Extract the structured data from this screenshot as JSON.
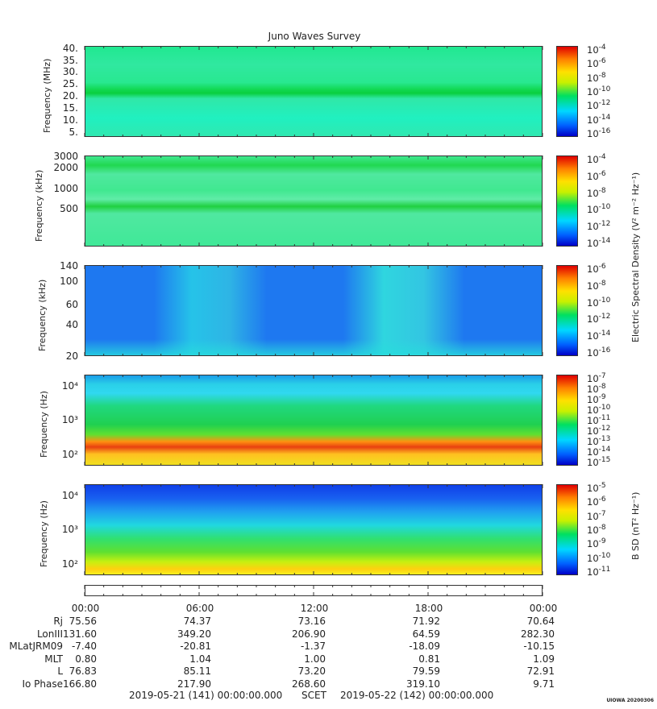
{
  "title": "Juno Waves Survey",
  "panels": [
    {
      "ylabel": "Frequency (MHz)",
      "yticks": [
        "40.",
        "35.",
        "30.",
        "25.",
        "20.",
        "15.",
        "10.",
        "5."
      ],
      "cbar_ticks": [
        "10-4",
        "10-6",
        "10-8",
        "10-10",
        "10-12",
        "10-14",
        "10-16"
      ]
    },
    {
      "ylabel": "Frequency (kHz)",
      "yticks": [
        "3000",
        "2000",
        "1000",
        "500"
      ],
      "cbar_ticks": [
        "10-4",
        "10-6",
        "10-8",
        "10-10",
        "10-12",
        "10-14"
      ]
    },
    {
      "ylabel": "Frequency (kHz)",
      "yticks": [
        "140",
        "100",
        "60",
        "40",
        "20"
      ],
      "cbar_ticks": [
        "10-6",
        "10-8",
        "10-10",
        "10-12",
        "10-14",
        "10-16"
      ]
    },
    {
      "ylabel": "Frequency (Hz)",
      "yticks": [
        "10⁴",
        "10³",
        "10²"
      ],
      "cbar_ticks": [
        "10-7",
        "10-8",
        "10-9",
        "10-10",
        "10-11",
        "10-12",
        "10-13",
        "10-14",
        "10-15"
      ]
    },
    {
      "ylabel": "Frequency (Hz)",
      "yticks": [
        "10⁴",
        "10³",
        "10²"
      ],
      "cbar_ticks": [
        "10-5",
        "10-6",
        "10-7",
        "10-8",
        "10-9",
        "10-10",
        "10-11"
      ]
    }
  ],
  "cbar_unit_e": "Electric Spectral Density (V² m⁻² Hz⁻¹)",
  "cbar_unit_b": "B SD (nT² Hz⁻¹)",
  "time_labels": [
    "00:00",
    "06:00",
    "12:00",
    "18:00",
    "00:00"
  ],
  "ephemeris": [
    {
      "label": "Rj",
      "values": [
        "75.56",
        "74.37",
        "73.16",
        "71.92",
        "70.64"
      ]
    },
    {
      "label": "LonIII",
      "values": [
        "131.60",
        "349.20",
        "206.90",
        "64.59",
        "282.30"
      ]
    },
    {
      "label": "MLatJRM09",
      "values": [
        "-7.40",
        "-20.81",
        "-1.37",
        "-18.09",
        "-10.15"
      ]
    },
    {
      "label": "MLT",
      "values": [
        "0.80",
        "1.04",
        "1.00",
        "0.81",
        "1.09"
      ]
    },
    {
      "label": "L",
      "values": [
        "76.83",
        "85.11",
        "73.20",
        "79.59",
        "72.91"
      ]
    },
    {
      "label": "Io Phase",
      "values": [
        "166.80",
        "217.90",
        "268.60",
        "319.10",
        "9.71"
      ]
    }
  ],
  "footer": {
    "start": "2019-05-21 (141) 00:00:00.000",
    "mid": "SCET",
    "end": "2019-05-22 (142) 00:00:00.000"
  },
  "stamp": "UIOWA 20200306",
  "chart_data": {
    "type": "heatmap",
    "title": "Juno Waves Survey",
    "x_range": [
      "2019-05-21 00:00",
      "2019-05-22 00:00"
    ],
    "panels": [
      {
        "ylabel": "Frequency (MHz)",
        "ylim": [
          3,
          41
        ],
        "color_range": [
          "1e-17",
          "1e-4"
        ],
        "note_band_MHz": 21
      },
      {
        "ylabel": "Frequency (kHz)",
        "ylim": [
          140,
          3000
        ],
        "scale": "log",
        "color_range": [
          "1e-15",
          "1e-4"
        ]
      },
      {
        "ylabel": "Frequency (kHz)",
        "ylim": [
          20,
          140
        ],
        "scale": "log",
        "color_range": [
          "1e-17",
          "1e-6"
        ]
      },
      {
        "ylabel": "Frequency (Hz)",
        "ylim": [
          50,
          20000
        ],
        "scale": "log",
        "color_range": [
          "1e-15",
          "1e-7"
        ]
      },
      {
        "ylabel": "Frequency (Hz)",
        "ylim": [
          50,
          20000
        ],
        "scale": "log",
        "color_range": [
          "1e-11",
          "1e-4.5"
        ]
      }
    ]
  }
}
